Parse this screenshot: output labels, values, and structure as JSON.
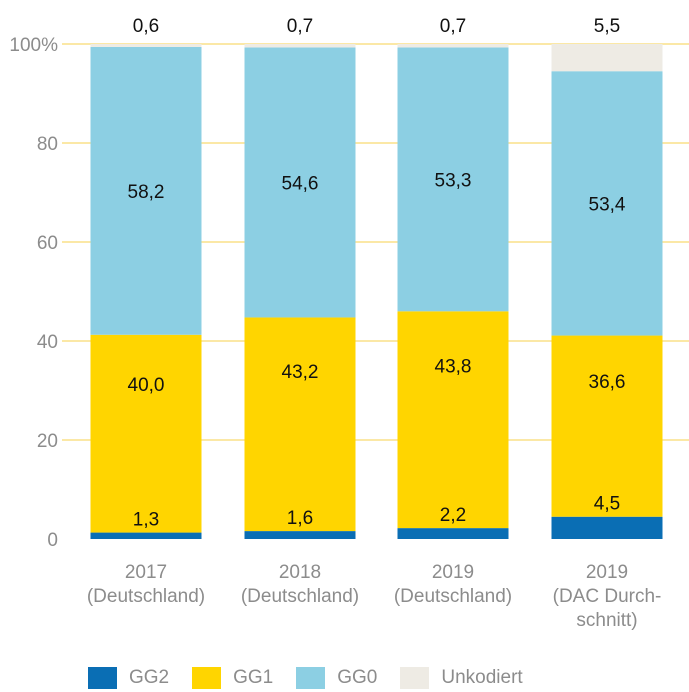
{
  "chart_data": {
    "type": "bar",
    "stacked": true,
    "categories": [
      [
        "2017",
        "(Deutschland)"
      ],
      [
        "2018",
        "(Deutschland)"
      ],
      [
        "2019",
        "(Deutschland)"
      ],
      [
        "2019",
        "(DAC Durch-",
        "schnitt)"
      ]
    ],
    "series": [
      {
        "name": "GG2",
        "color": "#0a6eb4",
        "values": [
          1.3,
          1.6,
          2.2,
          4.5
        ],
        "labels": [
          "1,3",
          "1,6",
          "2,2",
          "4,5"
        ]
      },
      {
        "name": "GG1",
        "color": "#ffd500",
        "values": [
          40.0,
          43.2,
          43.8,
          36.6
        ],
        "labels": [
          "40,0",
          "43,2",
          "43,8",
          "36,6"
        ]
      },
      {
        "name": "GG0",
        "color": "#8ccfe3",
        "values": [
          58.2,
          54.6,
          53.3,
          53.4
        ],
        "labels": [
          "58,2",
          "54,6",
          "53,3",
          "53,4"
        ]
      },
      {
        "name": "Unkodiert",
        "color": "#eeebe4",
        "values": [
          0.6,
          0.7,
          0.7,
          5.5
        ],
        "labels": [
          "0,6",
          "0,7",
          "0,7",
          "5,5"
        ]
      }
    ],
    "ylim": [
      0,
      100
    ],
    "yticks": [
      0,
      20,
      40,
      60,
      80,
      100
    ],
    "ytick_labels": [
      "0",
      "20",
      "40",
      "60",
      "80",
      "100%"
    ],
    "grid": true,
    "grid_color": "#fbe8a6",
    "legend_position": "bottom-left"
  }
}
